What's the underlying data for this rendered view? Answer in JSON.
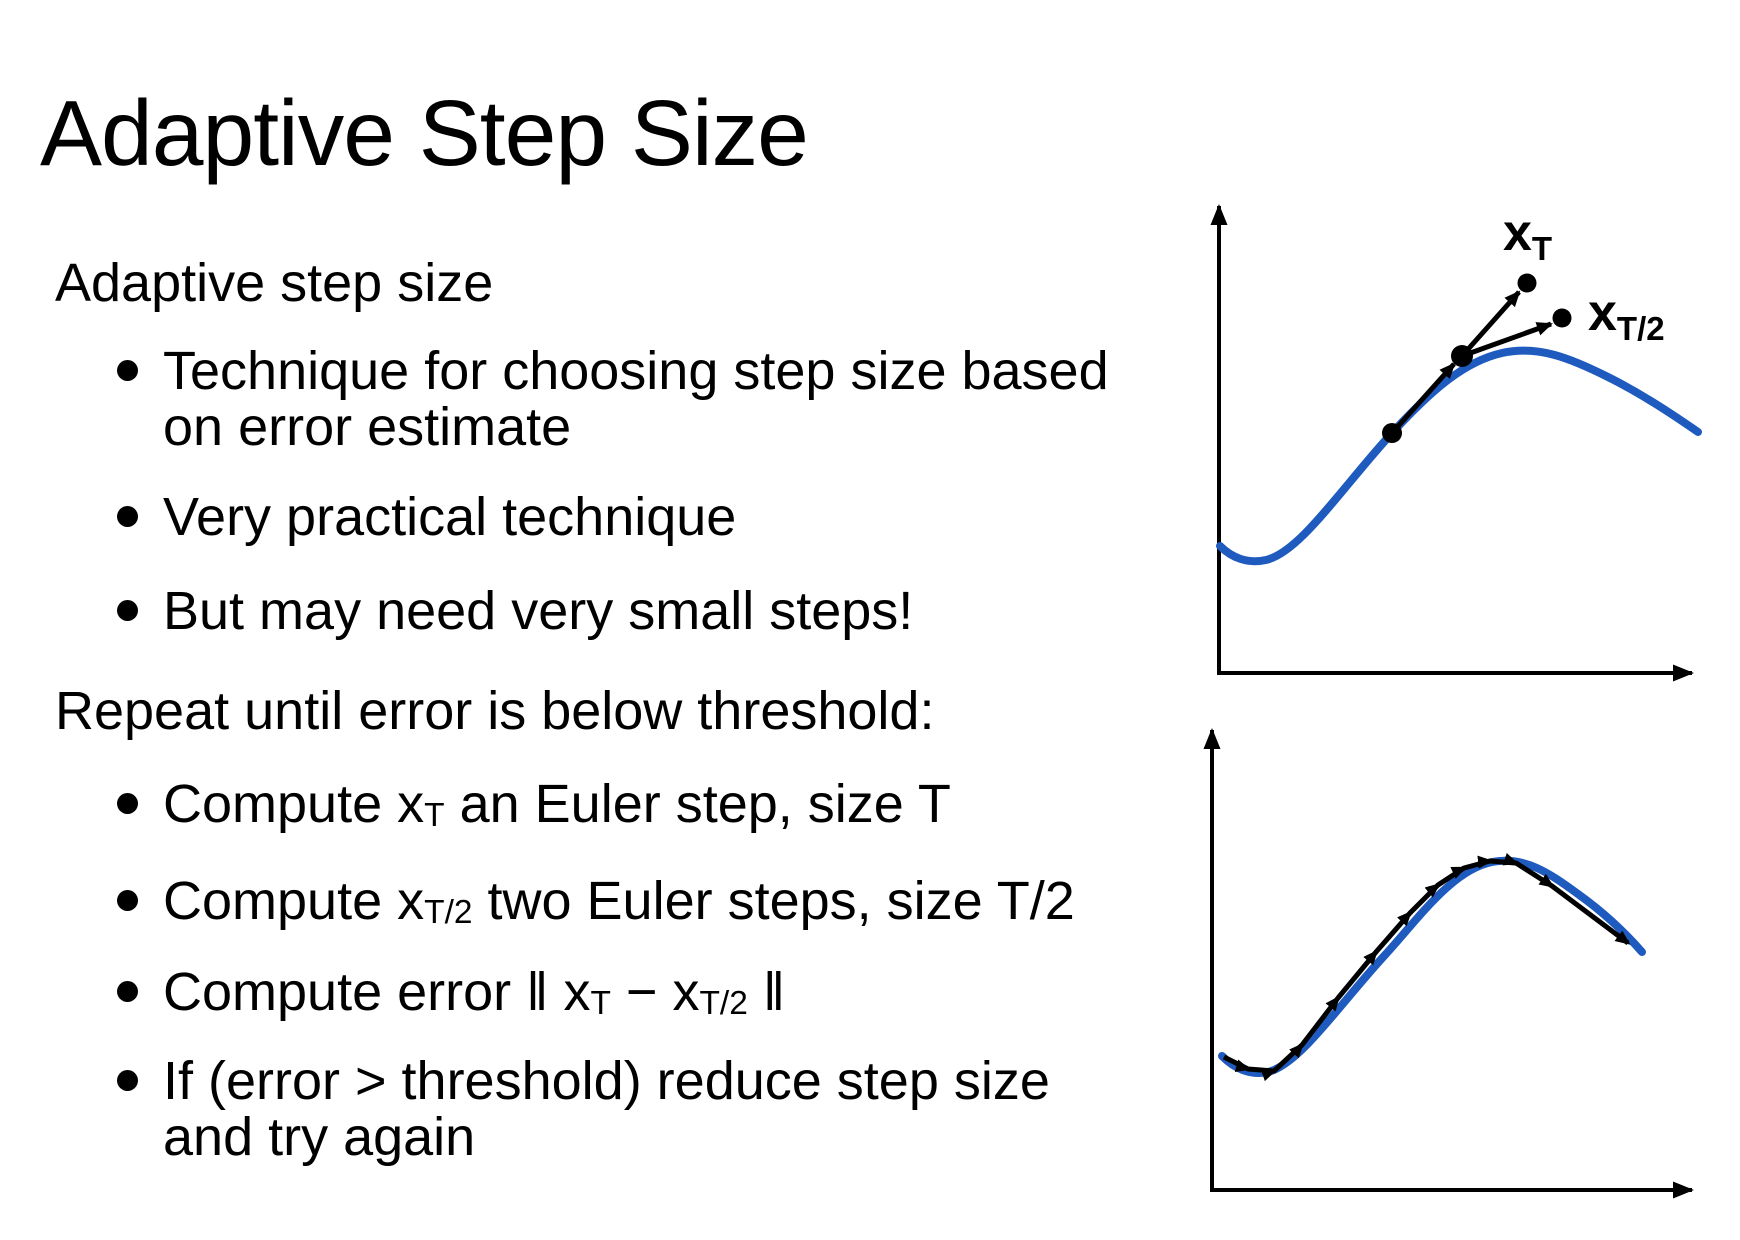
{
  "slide": {
    "title": "Adaptive Step Size",
    "sections": [
      {
        "heading": "Adaptive step size",
        "bullets": [
          [
            {
              "t": "Technique for choosing step size based\non error estimate"
            }
          ],
          [
            {
              "t": "Very practical technique"
            }
          ],
          [
            {
              "t": "But may need very small steps!"
            }
          ]
        ]
      },
      {
        "heading": "Repeat until error is below threshold:",
        "bullets": [
          [
            {
              "t": "Compute x"
            },
            {
              "sub": "T"
            },
            {
              "t": " an Euler step, size T"
            }
          ],
          [
            {
              "t": "Compute x"
            },
            {
              "sub": "T/2"
            },
            {
              "t": " two Euler steps, size T/2"
            }
          ],
          [
            {
              "t": "Compute error ‖ x"
            },
            {
              "sub": "T"
            },
            {
              "t": " − x"
            },
            {
              "sub": "T/2"
            },
            {
              "t": " ‖"
            }
          ],
          [
            {
              "t": "If (error > threshold) reduce step size\nand try again"
            }
          ]
        ]
      }
    ]
  },
  "diagrams": {
    "curve_color": "#1f5bbf",
    "ink_color": "#000000",
    "top": {
      "description": "One Euler step of size T overshoots the solution curve; two steps of size T/2 land closer",
      "labels": {
        "xT": {
          "base": "x",
          "sub": "T"
        },
        "xT2": {
          "base": "x",
          "sub": "T/2"
        }
      }
    },
    "bottom": {
      "description": "Many small Euler steps closely tracking the solution curve"
    }
  }
}
